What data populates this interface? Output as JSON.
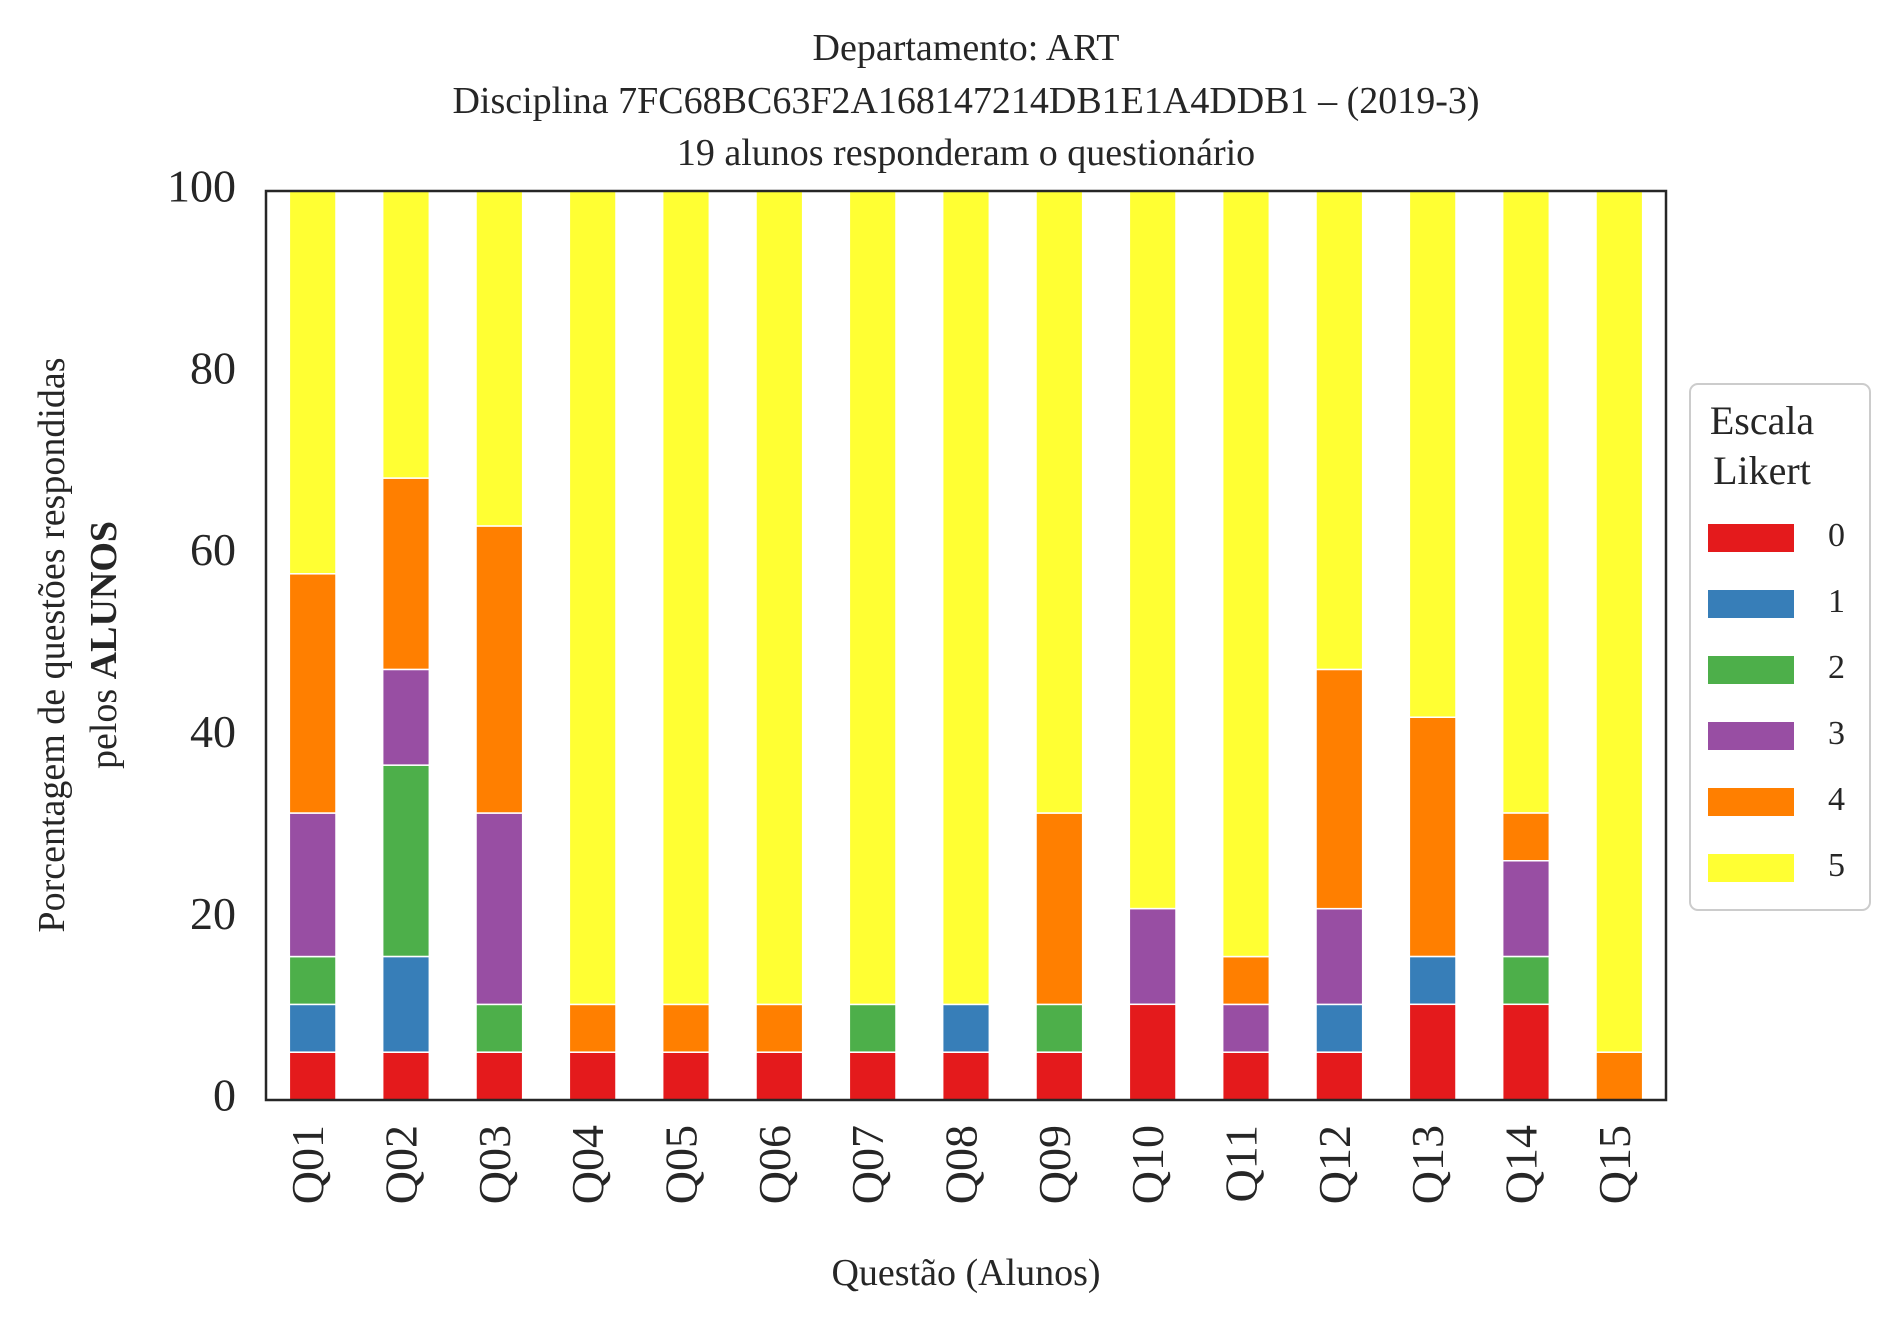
{
  "chart_data": {
    "type": "bar",
    "stacked": true,
    "title": [
      "Departamento: ART",
      "Disciplina 7FC68BC63F2A168147214DB1E1A4DDB1 – (2019-3)",
      "19 alunos responderam o questionário"
    ],
    "xlabel": "Questão (Alunos)",
    "ylabel_line1": "Porcentagem de questões respondidas",
    "ylabel_line2_prefix": "pelos ",
    "ylabel_line2_bold": "ALUNOS",
    "ylim": [
      0,
      100
    ],
    "yticks": [
      "0",
      "20",
      "40",
      "60",
      "80",
      "100"
    ],
    "ytick_values": [
      0,
      20,
      40,
      60,
      80,
      100
    ],
    "grid": false,
    "legend_title": [
      "Escala",
      "Likert"
    ],
    "legend_position": "right",
    "categories": [
      "Q01",
      "Q02",
      "Q03",
      "Q04",
      "Q05",
      "Q06",
      "Q07",
      "Q08",
      "Q09",
      "Q10",
      "Q11",
      "Q12",
      "Q13",
      "Q14",
      "Q15"
    ],
    "series": [
      {
        "name": "0",
        "color": "#e41a1c",
        "values": [
          5.26,
          5.26,
          5.26,
          5.26,
          5.26,
          5.26,
          5.26,
          5.26,
          5.26,
          10.53,
          5.26,
          5.26,
          10.53,
          10.53,
          0
        ]
      },
      {
        "name": "1",
        "color": "#377eb8",
        "values": [
          5.26,
          10.53,
          0,
          0,
          0,
          0,
          0,
          5.26,
          0,
          0,
          0,
          5.26,
          5.26,
          0,
          0
        ]
      },
      {
        "name": "2",
        "color": "#4daf4a",
        "values": [
          5.26,
          21.05,
          5.26,
          0,
          0,
          0,
          5.26,
          0,
          5.26,
          0,
          0,
          0,
          0,
          5.26,
          0
        ]
      },
      {
        "name": "3",
        "color": "#984ea3",
        "values": [
          15.79,
          10.53,
          21.05,
          0,
          0,
          0,
          0,
          0,
          0,
          10.53,
          5.26,
          10.53,
          0,
          10.53,
          0
        ]
      },
      {
        "name": "4",
        "color": "#ff7f00",
        "values": [
          26.32,
          21.05,
          31.58,
          5.26,
          5.26,
          5.26,
          0,
          0,
          21.05,
          0,
          5.26,
          26.32,
          26.32,
          5.26,
          5.26
        ]
      },
      {
        "name": "5",
        "color": "#ffff33",
        "values": [
          42.11,
          31.58,
          36.84,
          89.47,
          89.47,
          89.47,
          89.47,
          89.47,
          68.42,
          78.95,
          84.21,
          52.63,
          57.89,
          68.42,
          94.74
        ]
      }
    ]
  }
}
